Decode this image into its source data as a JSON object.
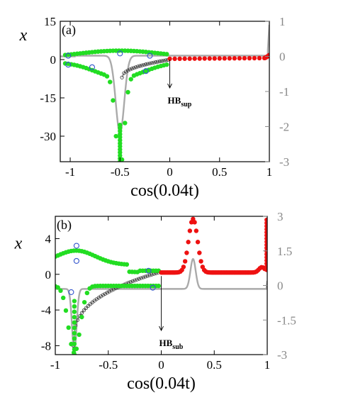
{
  "chart_data": [
    {
      "id": "a",
      "type": "scatter",
      "panel_label": "(a)",
      "xlabel": "cos(0.04t)",
      "ylabel": "x",
      "xlim": [
        -1.1,
        1.0
      ],
      "ylim": [
        -40,
        15
      ],
      "y2lim": [
        -3,
        1
      ],
      "xticks": [
        "-1",
        "-0.5",
        "0",
        "0.5",
        "1"
      ],
      "xtick_values": [
        -1,
        -0.5,
        0,
        0.5,
        1
      ],
      "yticks": [
        "15",
        "0",
        "-15",
        "-30"
      ],
      "ytick_values": [
        15,
        0,
        -15,
        -30
      ],
      "y2ticks": [
        "1",
        "0",
        "-1",
        "-2",
        "-3"
      ],
      "y2tick_values": [
        1,
        0,
        -1,
        -2,
        -3
      ],
      "annotation": {
        "text": "HB",
        "sub": "sup",
        "x": 0.0
      },
      "colors": {
        "green": "#22dd22",
        "red": "#ee1111",
        "gray": "#aaaaaa",
        "black": "#333333",
        "blue": "#3355cc"
      }
    },
    {
      "id": "b",
      "type": "scatter",
      "panel_label": "(b)",
      "xlabel": "cos(0.04t)",
      "ylabel": "x",
      "xlim": [
        -1.0,
        1.0
      ],
      "ylim": [
        -9,
        6.5
      ],
      "y2lim": [
        -3,
        3
      ],
      "xticks": [
        "-1",
        "-0.5",
        "0",
        "0.5",
        "1"
      ],
      "xtick_values": [
        -1,
        -0.5,
        0,
        0.5,
        1
      ],
      "yticks": [
        "4",
        "0",
        "-4",
        "-8"
      ],
      "ytick_values": [
        4,
        0,
        -4,
        -8
      ],
      "y2ticks": [
        "3",
        "1.5",
        "0",
        "-1.5",
        "-3"
      ],
      "y2tick_values": [
        3,
        1.5,
        0,
        -1.5,
        -3
      ],
      "annotation": {
        "text": "HB",
        "sub": "sub",
        "x": 0.0
      },
      "colors": {
        "green": "#22dd22",
        "red": "#ee1111",
        "gray": "#aaaaaa",
        "black": "#333333",
        "blue": "#3355cc"
      }
    }
  ]
}
